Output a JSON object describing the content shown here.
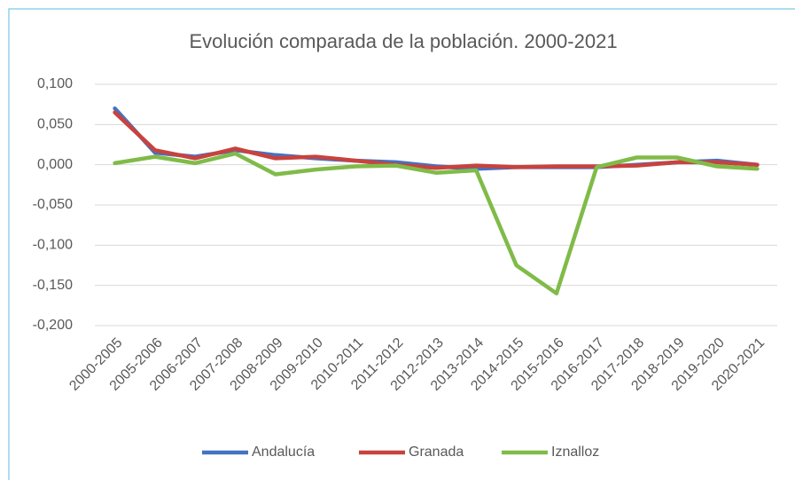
{
  "chart_data": {
    "type": "line",
    "title": "Evolución comparada de la población. 2000-2021",
    "categories": [
      "2000-2005",
      "2005-2006",
      "2006-2007",
      "2007-2008",
      "2008-2009",
      "2009-2010",
      "2010-2011",
      "2011-2012",
      "2012-2013",
      "2013-2014",
      "2014-2015",
      "2015-2016",
      "2016-2017",
      "2017-2018",
      "2018-2019",
      "2019-2020",
      "2020-2021"
    ],
    "series": [
      {
        "name": "Andalucía",
        "color": "#4472c4",
        "values": [
          0.07,
          0.015,
          0.01,
          0.018,
          0.012,
          0.008,
          0.005,
          0.003,
          -0.002,
          -0.005,
          -0.003,
          -0.003,
          -0.003,
          0.0,
          0.003,
          0.005,
          0.0
        ]
      },
      {
        "name": "Granada",
        "color": "#c8423e",
        "values": [
          0.065,
          0.018,
          0.008,
          0.02,
          0.008,
          0.01,
          0.005,
          0.0,
          -0.004,
          -0.001,
          -0.003,
          -0.002,
          -0.002,
          -0.001,
          0.003,
          0.003,
          0.0
        ]
      },
      {
        "name": "Iznalloz",
        "color": "#80bb48",
        "values": [
          0.002,
          0.01,
          0.002,
          0.014,
          -0.012,
          -0.006,
          -0.002,
          -0.001,
          -0.01,
          -0.007,
          -0.125,
          -0.16,
          -0.003,
          0.009,
          0.009,
          -0.002,
          -0.005
        ]
      }
    ],
    "ylim": [
      -0.2,
      0.1
    ],
    "yticks": [
      {
        "value": -0.2,
        "label": "-0,200"
      },
      {
        "value": -0.15,
        "label": "-0,150"
      },
      {
        "value": -0.1,
        "label": "-0,100"
      },
      {
        "value": -0.05,
        "label": "-0,050"
      },
      {
        "value": 0,
        "label": "0,000"
      },
      {
        "value": 0.05,
        "label": "0,050"
      },
      {
        "value": 0.1,
        "label": "0,100"
      }
    ],
    "grid": true,
    "legend": "bottom"
  }
}
